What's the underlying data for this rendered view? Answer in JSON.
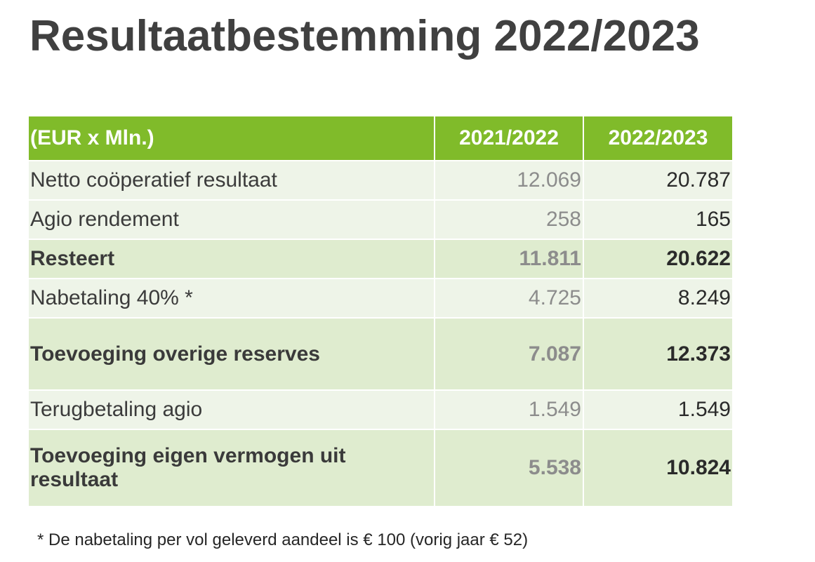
{
  "title": "Resultaatbestemming 2022/2023",
  "colors": {
    "header_green": "#80bb2a",
    "row_light": "#eef4e8",
    "row_mid": "#dfeccf",
    "title_gray": "#404040",
    "prev_year_gray": "#8c8c8c"
  },
  "table": {
    "headers": [
      "(EUR x Mln.)",
      "2021/2022",
      "2022/2023"
    ],
    "rows": [
      {
        "label": "Netto coöperatief resultaat",
        "prev": "12.069",
        "cur": "20.787",
        "bold": false
      },
      {
        "label": "Agio rendement",
        "prev": "258",
        "cur": "165",
        "bold": false
      },
      {
        "label": "Resteert",
        "prev": "11.811",
        "cur": "20.622",
        "bold": true
      },
      {
        "label": "Nabetaling 40% *",
        "prev": "4.725",
        "cur": "8.249",
        "bold": false
      },
      {
        "label": "Toevoeging overige reserves",
        "prev": "7.087",
        "cur": "12.373",
        "bold": true
      },
      {
        "label": "Terugbetaling agio",
        "prev": "1.549",
        "cur": "1.549",
        "bold": false
      },
      {
        "label": "Toevoeging eigen vermogen uit resultaat",
        "prev": "5.538",
        "cur": "10.824",
        "bold": true
      }
    ]
  },
  "footnote": "* De nabetaling per vol geleverd aandeel is € 100 (vorig jaar € 52)"
}
